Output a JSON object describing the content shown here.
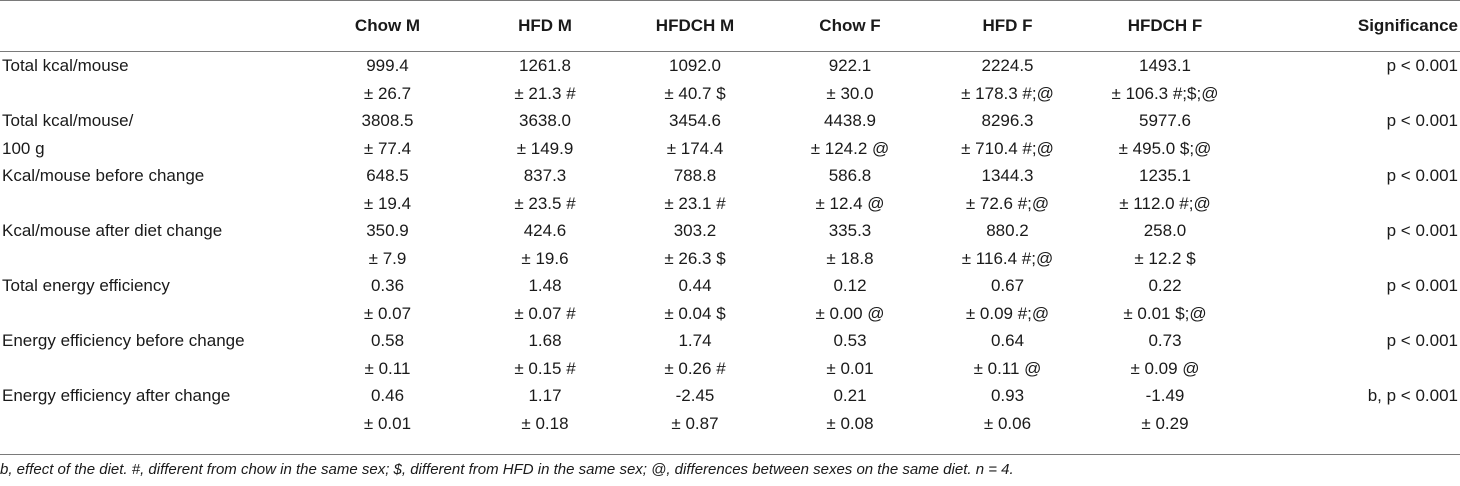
{
  "headers": [
    "",
    "Chow M",
    "HFD M",
    "HFDCH M",
    "Chow F",
    "HFD F",
    "HFDCH F",
    "Significance"
  ],
  "rows": [
    {
      "label": [
        "Total kcal/mouse",
        ""
      ],
      "values": [
        [
          "999.4",
          "± 26.7"
        ],
        [
          "1261.8",
          "± 21.3 #"
        ],
        [
          "1092.0",
          "± 40.7 $"
        ],
        [
          "922.1",
          "± 30.0"
        ],
        [
          "2224.5",
          "± 178.3 #;@"
        ],
        [
          "1493.1",
          "± 106.3 #;$;@"
        ]
      ],
      "significance": "p < 0.001"
    },
    {
      "label": [
        "Total kcal/mouse/",
        "100 g"
      ],
      "values": [
        [
          "3808.5",
          "± 77.4"
        ],
        [
          "3638.0",
          "± 149.9"
        ],
        [
          "3454.6",
          "± 174.4"
        ],
        [
          "4438.9",
          "± 124.2 @"
        ],
        [
          "8296.3",
          "± 710.4 #;@"
        ],
        [
          "5977.6",
          "± 495.0 $;@"
        ]
      ],
      "significance": "p < 0.001"
    },
    {
      "label": [
        "Kcal/mouse before change",
        ""
      ],
      "values": [
        [
          "648.5",
          "± 19.4"
        ],
        [
          "837.3",
          "± 23.5 #"
        ],
        [
          "788.8",
          "± 23.1 #"
        ],
        [
          "586.8",
          "± 12.4 @"
        ],
        [
          "1344.3",
          "± 72.6 #;@"
        ],
        [
          "1235.1",
          "± 112.0 #;@"
        ]
      ],
      "significance": "p < 0.001"
    },
    {
      "label": [
        "Kcal/mouse after diet change",
        ""
      ],
      "values": [
        [
          "350.9",
          "± 7.9"
        ],
        [
          "424.6",
          "± 19.6"
        ],
        [
          "303.2",
          "± 26.3 $"
        ],
        [
          "335.3",
          "± 18.8"
        ],
        [
          "880.2",
          "± 116.4 #;@"
        ],
        [
          "258.0",
          "± 12.2 $"
        ]
      ],
      "significance": "p < 0.001"
    },
    {
      "label": [
        "Total energy efficiency",
        ""
      ],
      "values": [
        [
          "0.36",
          "± 0.07"
        ],
        [
          "1.48",
          "± 0.07 #"
        ],
        [
          "0.44",
          "± 0.04 $"
        ],
        [
          "0.12",
          "± 0.00 @"
        ],
        [
          "0.67",
          "± 0.09 #;@"
        ],
        [
          "0.22",
          "± 0.01 $;@"
        ]
      ],
      "significance": "p < 0.001"
    },
    {
      "label": [
        "Energy efficiency before change",
        ""
      ],
      "values": [
        [
          "0.58",
          "± 0.11"
        ],
        [
          "1.68",
          "± 0.15 #"
        ],
        [
          "1.74",
          "± 0.26 #"
        ],
        [
          "0.53",
          "± 0.01"
        ],
        [
          "0.64",
          "± 0.11 @"
        ],
        [
          "0.73",
          "± 0.09 @"
        ]
      ],
      "significance": "p < 0.001"
    },
    {
      "label": [
        "Energy efficiency after change",
        ""
      ],
      "values": [
        [
          "0.46",
          "± 0.01"
        ],
        [
          "1.17",
          "± 0.18"
        ],
        [
          "-2.45",
          "± 0.87"
        ],
        [
          "0.21",
          "± 0.08"
        ],
        [
          "0.93",
          "± 0.06"
        ],
        [
          "-1.49",
          "± 0.29"
        ]
      ],
      "significance": "b, p < 0.001"
    }
  ],
  "footnote": "b, effect of the diet. #, different from chow in the same sex; $, different from HFD in the same sex; @, differences between sexes on the same diet. n = 4."
}
